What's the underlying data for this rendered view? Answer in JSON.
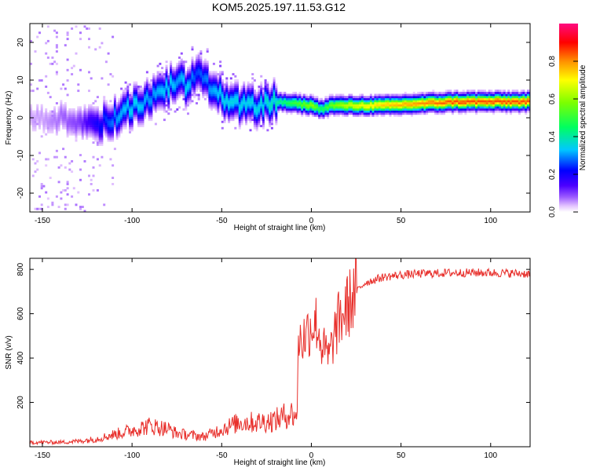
{
  "title": "KOM5.2025.197.11.53.G12",
  "colors": {
    "snr_line": "#e8302c",
    "axis": "#000000",
    "background": "#ffffff"
  },
  "chart_data": [
    {
      "type": "heatmap",
      "title": "KOM5.2025.197.11.53.G12",
      "xlabel": "Height of straight line (km)",
      "ylabel": "Frequency (Hz)",
      "xlim": [
        -157,
        122
      ],
      "ylim": [
        -25,
        25
      ],
      "x_ticks": [
        -150,
        -100,
        -50,
        0,
        50,
        100
      ],
      "y_ticks": [
        -20,
        -10,
        0,
        10,
        20
      ],
      "colorbar": {
        "label": "Normalized spectral amplitude",
        "range": [
          0,
          1
        ],
        "ticks": [
          0.0,
          0.2,
          0.4,
          0.6,
          0.8
        ],
        "colormap": "rainbow (white → violet → blue → cyan → green → yellow → red → magenta)"
      },
      "ridge": {
        "description": "dominant frequency ridge vs height",
        "x": [
          -150,
          -130,
          -120,
          -110,
          -100,
          -90,
          -80,
          -75,
          -70,
          -65,
          -50,
          -40,
          -30,
          -20,
          0,
          5,
          10,
          20,
          40,
          60,
          80,
          100,
          122
        ],
        "frequency": [
          0,
          -1,
          -2,
          0,
          3,
          5,
          8,
          10,
          8,
          12,
          5,
          3,
          3,
          4,
          3,
          2,
          3,
          3,
          3,
          3.5,
          4,
          4,
          4
        ],
        "amplitude": [
          0.05,
          0.1,
          0.2,
          0.3,
          0.35,
          0.3,
          0.35,
          0.3,
          0.35,
          0.25,
          0.35,
          0.35,
          0.35,
          0.4,
          0.6,
          0.45,
          0.55,
          0.65,
          0.75,
          0.8,
          0.85,
          0.85,
          0.85
        ]
      },
      "grid": false
    },
    {
      "type": "line",
      "xlabel": "Height of straight line (km)",
      "ylabel": "SNR (v/v)",
      "xlim": [
        -157,
        122
      ],
      "ylim": [
        0,
        850
      ],
      "x_ticks": [
        -150,
        -100,
        -50,
        0,
        50,
        100
      ],
      "y_ticks": [
        200,
        400,
        600,
        800
      ],
      "grid": false,
      "series": [
        {
          "x": [
            -157,
            -140,
            -130,
            -120,
            -110,
            -100,
            -90,
            -80,
            -75,
            -60,
            -50,
            -40,
            -30,
            -20,
            -12,
            -8,
            -7,
            -5,
            0,
            3,
            6,
            10,
            12,
            15,
            20,
            25,
            30,
            40,
            50,
            60,
            80,
            100,
            122
          ],
          "values": [
            20,
            20,
            25,
            35,
            55,
            75,
            95,
            80,
            60,
            45,
            80,
            110,
            110,
            120,
            150,
            140,
            500,
            480,
            550,
            560,
            450,
            400,
            480,
            560,
            630,
            700,
            740,
            765,
            775,
            780,
            785,
            785,
            780
          ]
        }
      ]
    }
  ]
}
